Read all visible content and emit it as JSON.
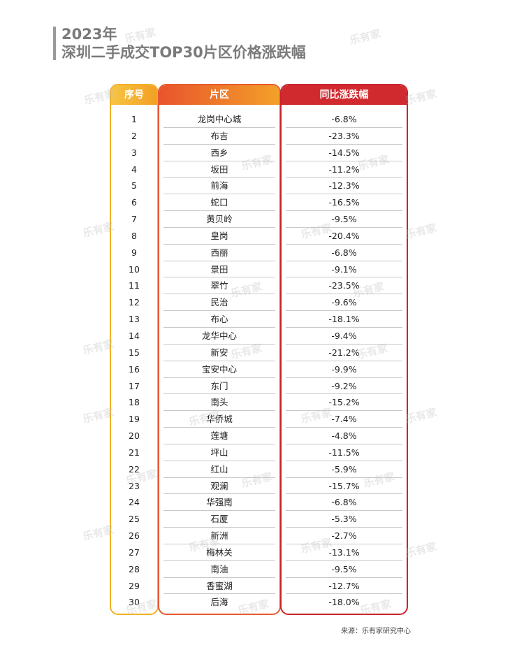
{
  "title": {
    "year": "2023年",
    "main": "深圳二手成交TOP30片区价格涨跌幅"
  },
  "watermark_text": "乐有家",
  "source": "来源：乐有家研究中心",
  "colors": {
    "header_idx": "#f2b126",
    "header_area": "#e8592e",
    "header_change": "#c8242b"
  },
  "chart_data": {
    "type": "table",
    "columns": [
      "序号",
      "片区",
      "同比涨跌幅"
    ],
    "rows": [
      [
        "1",
        "龙岗中心城",
        "-6.8%"
      ],
      [
        "2",
        "布吉",
        "-23.3%"
      ],
      [
        "3",
        "西乡",
        "-14.5%"
      ],
      [
        "4",
        "坂田",
        "-11.2%"
      ],
      [
        "5",
        "前海",
        "-12.3%"
      ],
      [
        "6",
        "蛇口",
        "-16.5%"
      ],
      [
        "7",
        "黄贝岭",
        "-9.5%"
      ],
      [
        "8",
        "皇岗",
        "-20.4%"
      ],
      [
        "9",
        "西丽",
        "-6.8%"
      ],
      [
        "10",
        "景田",
        "-9.1%"
      ],
      [
        "11",
        "翠竹",
        "-23.5%"
      ],
      [
        "12",
        "民治",
        "-9.6%"
      ],
      [
        "13",
        "布心",
        "-18.1%"
      ],
      [
        "14",
        "龙华中心",
        "-9.4%"
      ],
      [
        "15",
        "新安",
        "-21.2%"
      ],
      [
        "16",
        "宝安中心",
        "-9.9%"
      ],
      [
        "17",
        "东门",
        "-9.2%"
      ],
      [
        "18",
        "南头",
        "-15.2%"
      ],
      [
        "19",
        "华侨城",
        "-7.4%"
      ],
      [
        "20",
        "莲塘",
        "-4.8%"
      ],
      [
        "21",
        "坪山",
        "-11.5%"
      ],
      [
        "22",
        "红山",
        "-5.9%"
      ],
      [
        "23",
        "观澜",
        "-15.7%"
      ],
      [
        "24",
        "华强南",
        "-6.8%"
      ],
      [
        "25",
        "石厦",
        "-5.3%"
      ],
      [
        "26",
        "新洲",
        "-2.7%"
      ],
      [
        "27",
        "梅林关",
        "-13.1%"
      ],
      [
        "28",
        "南油",
        "-9.5%"
      ],
      [
        "29",
        "香蜜湖",
        "-12.7%"
      ],
      [
        "30",
        "后海",
        "-18.0%"
      ]
    ]
  }
}
